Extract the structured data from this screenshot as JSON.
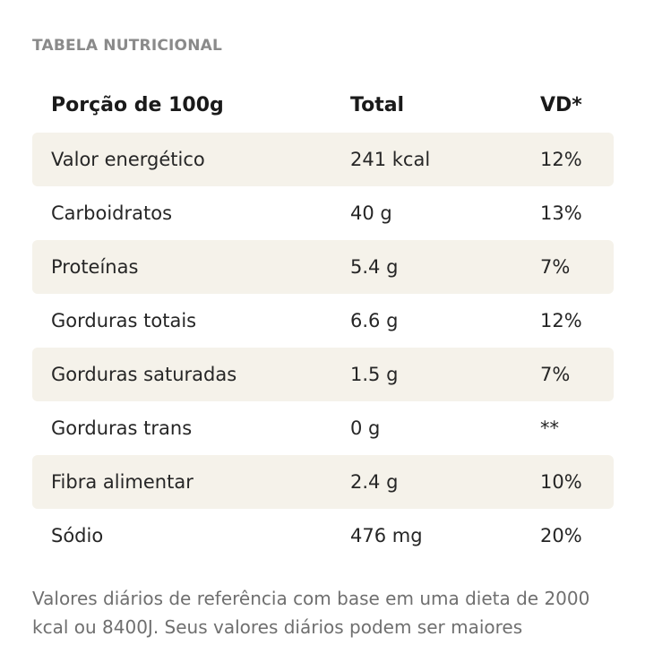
{
  "section_title": "TABELA NUTRICIONAL",
  "table": {
    "headers": [
      "Porção de 100g",
      "Total",
      "VD*"
    ],
    "rows": [
      [
        "Valor energético",
        "241 kcal",
        "12%"
      ],
      [
        "Carboidratos",
        "40 g",
        "13%"
      ],
      [
        "Proteínas",
        "5.4 g",
        "7%"
      ],
      [
        "Gorduras totais",
        "6.6 g",
        "12%"
      ],
      [
        "Gorduras saturadas",
        "1.5 g",
        "7%"
      ],
      [
        "Gorduras trans",
        "0 g",
        "**"
      ],
      [
        "Fibra alimentar",
        "2.4 g",
        "10%"
      ],
      [
        "Sódio",
        "476 mg",
        "20%"
      ]
    ]
  },
  "footnote": "Valores diários de referência com base em uma dieta de 2000 kcal ou 8400J. Seus valores diários podem ser maiores"
}
